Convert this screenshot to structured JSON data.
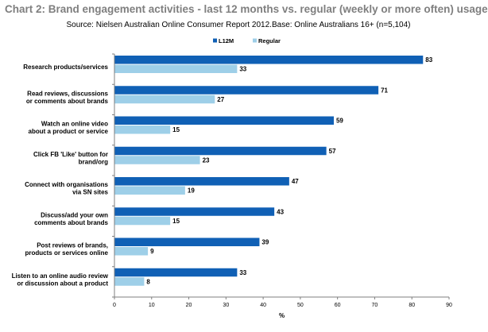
{
  "chart_data": {
    "type": "bar",
    "orientation": "horizontal",
    "title": "Chart 2: Brand engagement activities - last 12 months vs. regular (weekly or more often) usage",
    "subtitle": "Source: Nielsen Australian Online Consumer Report 2012.Base: Online Australians 16+ (n=5,104)",
    "categories": [
      [
        "Research products/services"
      ],
      [
        "Read reviews, discussions",
        "or comments about brands"
      ],
      [
        "Watch an online video",
        "about a product or service"
      ],
      [
        "Click FB 'Like' button for",
        "brand/org"
      ],
      [
        "Connect with organisations",
        "via SN sites"
      ],
      [
        "Discuss/add your own",
        "comments about brands"
      ],
      [
        "Post reviews of brands,",
        "products or services online"
      ],
      [
        "Listen to an online audio review",
        "or discussion about a product"
      ]
    ],
    "series": [
      {
        "name": "L12M",
        "color": "#1060b5",
        "values": [
          83,
          71,
          59,
          57,
          47,
          43,
          39,
          33
        ]
      },
      {
        "name": "Regular",
        "color": "#9ecfe8",
        "values": [
          33,
          27,
          15,
          23,
          19,
          15,
          9,
          8
        ]
      }
    ],
    "xlabel": "%",
    "xlim": [
      0,
      90
    ],
    "xticks": [
      "0",
      "10",
      "20",
      "30",
      "40",
      "50",
      "60",
      "70",
      "80",
      "90"
    ],
    "legend_position": "top-right",
    "grid": false
  }
}
